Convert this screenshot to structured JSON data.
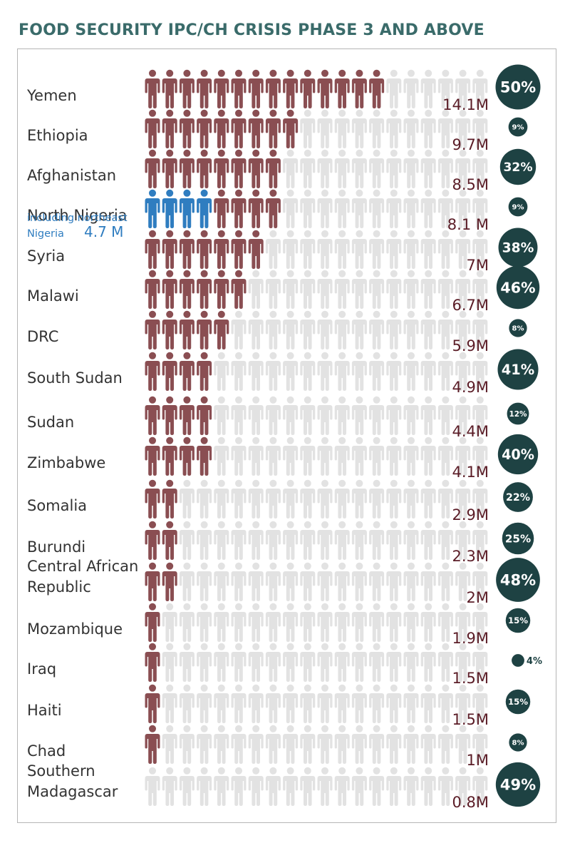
{
  "title": "FOOD SECURITY IPC/CH CRISIS PHASE 3 AND ABOVE",
  "colors": {
    "filled": "#8a4e52",
    "highlight": "#2f7dc0",
    "empty": "#e2e2e2",
    "badge": "#1e4243",
    "country_text": "#333333",
    "value_text": "#5b1d27",
    "title": "#3a6b6a"
  },
  "icon": "person-icon",
  "chart_data": {
    "type": "pictogram",
    "title": "FOOD SECURITY IPC/CH CRISIS PHASE 3 AND ABOVE",
    "icons_per_row": 20,
    "unit_per_icon_millions": 1,
    "series": [
      {
        "country_lines": [
          "Yemen"
        ],
        "value": 14.1,
        "value_label": "14.1M",
        "pct": 50,
        "pct_label": "50%"
      },
      {
        "country_lines": [
          "Ethiopia"
        ],
        "value": 9.7,
        "value_label": "9.7M",
        "pct": 9,
        "pct_label": "9%"
      },
      {
        "country_lines": [
          "Afghanistan"
        ],
        "value": 8.5,
        "value_label": "8.5M",
        "pct": 32,
        "pct_label": "32%"
      },
      {
        "country_lines": [
          "North Nigeria"
        ],
        "value": 8.1,
        "value_label": "8.1 M",
        "pct": 9,
        "pct_label": "9%",
        "sub_value": 4.7,
        "sub_note": "including northeast",
        "sub_note2": "Nigeria",
        "sub_value_label": "4.7 M"
      },
      {
        "country_lines": [
          "Syria"
        ],
        "value": 7,
        "value_label": "7M",
        "pct": 38,
        "pct_label": "38%"
      },
      {
        "country_lines": [
          "Malawi"
        ],
        "value": 6.7,
        "value_label": "6.7M",
        "pct": 46,
        "pct_label": "46%"
      },
      {
        "country_lines": [
          "DRC"
        ],
        "value": 5.9,
        "value_label": "5.9M",
        "pct": 8,
        "pct_label": "8%"
      },
      {
        "country_lines": [
          "South Sudan"
        ],
        "value": 4.9,
        "value_label": "4.9M",
        "pct": 41,
        "pct_label": "41%"
      },
      {
        "country_lines": [
          "Sudan"
        ],
        "value": 4.4,
        "value_label": "4.4M",
        "pct": 12,
        "pct_label": "12%"
      },
      {
        "country_lines": [
          "Zimbabwe"
        ],
        "value": 4.1,
        "value_label": "4.1M",
        "pct": 40,
        "pct_label": "40%"
      },
      {
        "country_lines": [
          "Somalia"
        ],
        "value": 2.9,
        "value_label": "2.9M",
        "pct": 22,
        "pct_label": "22%"
      },
      {
        "country_lines": [
          "Burundi"
        ],
        "value": 2.3,
        "value_label": "2.3M",
        "pct": 25,
        "pct_label": "25%"
      },
      {
        "country_lines": [
          "Central African",
          "Republic"
        ],
        "value": 2,
        "value_label": "2M",
        "pct": 48,
        "pct_label": "48%"
      },
      {
        "country_lines": [
          "Mozambique"
        ],
        "value": 1.9,
        "value_label": "1.9M",
        "pct": 15,
        "pct_label": "15%"
      },
      {
        "country_lines": [
          "Iraq"
        ],
        "value": 1.5,
        "value_label": "1.5M",
        "pct": 4,
        "pct_label": "4%"
      },
      {
        "country_lines": [
          "Haiti"
        ],
        "value": 1.5,
        "value_label": "1.5M",
        "pct": 15,
        "pct_label": "15%"
      },
      {
        "country_lines": [
          "Chad"
        ],
        "value": 1,
        "value_label": "1M",
        "pct": 8,
        "pct_label": "8%"
      },
      {
        "country_lines": [
          "Southern",
          "Madagascar"
        ],
        "value": 0.8,
        "value_label": "0.8M",
        "pct": 49,
        "pct_label": "49%"
      }
    ]
  }
}
